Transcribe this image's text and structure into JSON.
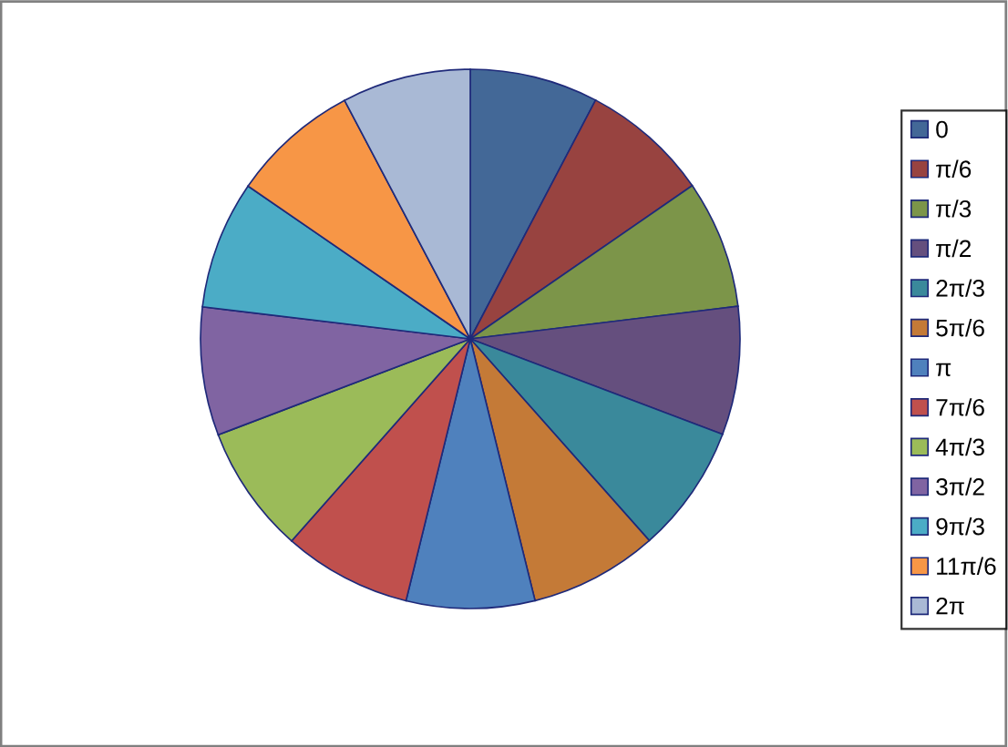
{
  "chart_data": {
    "type": "pie",
    "categories": [
      "0",
      "π/6",
      "π/3",
      "π/2",
      "2π/3",
      "5π/6",
      "π",
      "7π/6",
      "4π/3",
      "3π/2",
      "9π/3",
      "11π/6",
      "2π"
    ],
    "values": [
      7.69,
      7.69,
      7.69,
      7.69,
      7.69,
      7.69,
      7.69,
      7.69,
      7.69,
      7.69,
      7.69,
      7.69,
      7.72
    ],
    "colors": [
      "#436897",
      "#984340",
      "#7c9549",
      "#654f7e",
      "#3a899b",
      "#c47a37",
      "#4f81bd",
      "#c0504d",
      "#9bbb59",
      "#8064a2",
      "#4bacc6",
      "#f79646",
      "#a9b9d5"
    ],
    "legend": "right"
  }
}
